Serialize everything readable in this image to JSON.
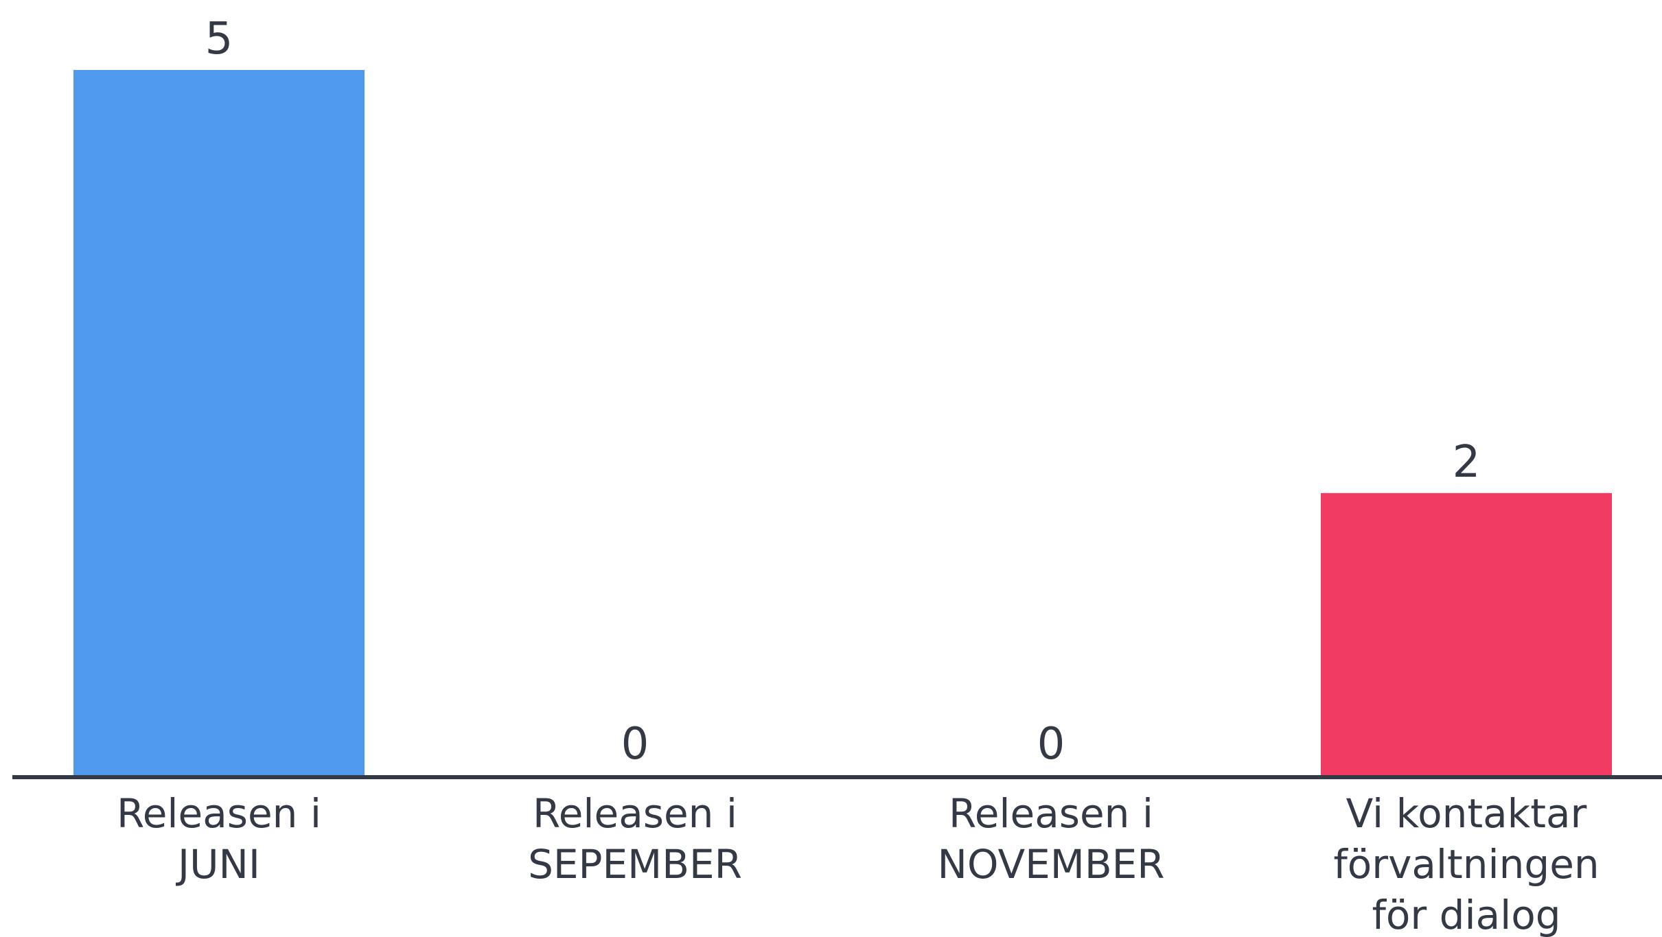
{
  "chart_data": {
    "type": "bar",
    "categories": [
      [
        "Releasen i",
        "JUNI"
      ],
      [
        "Releasen i",
        "SEPEMBER"
      ],
      [
        "Releasen i",
        "NOVEMBER"
      ],
      [
        "Vi kontaktar",
        "förvaltningen",
        "för dialog"
      ]
    ],
    "values": [
      5,
      0,
      0,
      2
    ],
    "value_labels": [
      "5",
      "0",
      "0",
      "2"
    ],
    "colors": [
      "#4f99ee",
      "#4f99ee",
      "#4f99ee",
      "#f23b62"
    ],
    "ylim": [
      0,
      5
    ],
    "axis_color": "#333a45",
    "grid": false,
    "legend": "none"
  }
}
